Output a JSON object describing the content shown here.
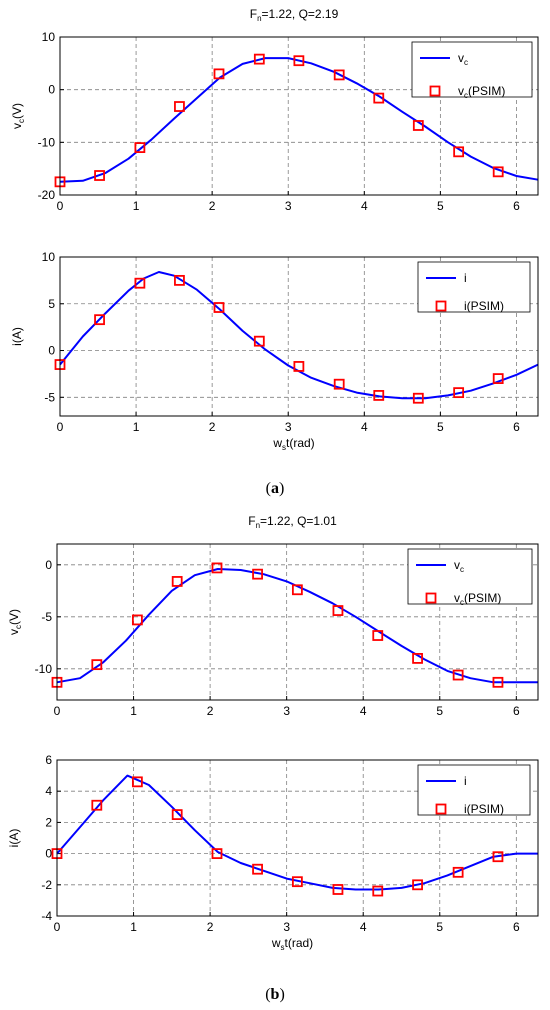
{
  "figure": {
    "caption_a": "a",
    "caption_b": "b"
  },
  "colors": {
    "line": "#0000ff",
    "marker": "#ff0000",
    "grid": "#808080"
  },
  "chart_data": [
    {
      "type": "line",
      "title": "F_n=1.22, Q=2.19",
      "title_main": "F",
      "title_sub": "n",
      "title_rest": "=1.22, Q=2.19",
      "xlabel": "",
      "ylabel": "v_c(V)",
      "ylabel_main": "v",
      "ylabel_sub": "c",
      "ylabel_rest": "(V)",
      "xlim": [
        0,
        6.2832
      ],
      "ylim": [
        -20,
        10
      ],
      "xticks": [
        0,
        1,
        2,
        3,
        4,
        5,
        6
      ],
      "yticks": [
        -20,
        -10,
        0,
        10
      ],
      "grid": true,
      "legend": "top-right",
      "series": [
        {
          "name": "v_c",
          "legend_main": "v",
          "legend_sub": "c",
          "legend_rest": "",
          "style": "line",
          "x": [
            0,
            0.3,
            0.6,
            0.9,
            1.2,
            1.5,
            1.8,
            2.1,
            2.4,
            2.7,
            3.0,
            3.3,
            3.6,
            3.9,
            4.2,
            4.5,
            4.8,
            5.1,
            5.4,
            5.7,
            6.0,
            6.2832
          ],
          "y": [
            -17.5,
            -17.3,
            -15.8,
            -13.1,
            -9.5,
            -5.5,
            -1.6,
            2.3,
            4.9,
            6.0,
            6.0,
            5.0,
            3.4,
            1.2,
            -1.3,
            -4.2,
            -7.0,
            -10.0,
            -12.7,
            -14.9,
            -16.4,
            -17.1
          ]
        },
        {
          "name": "v_c(PSIM)",
          "legend_main": "v",
          "legend_sub": "c",
          "legend_rest": "(PSIM)",
          "style": "marker",
          "x": [
            0,
            0.52,
            1.05,
            1.57,
            2.09,
            2.62,
            3.14,
            3.67,
            4.19,
            4.71,
            5.24,
            5.76
          ],
          "y": [
            -17.5,
            -16.3,
            -11.0,
            -3.2,
            3.0,
            5.8,
            5.5,
            2.8,
            -1.6,
            -6.8,
            -11.8,
            -15.6
          ]
        }
      ]
    },
    {
      "type": "line",
      "title": "",
      "xlabel": "w_st(rad)",
      "xlabel_main": "w",
      "xlabel_sub": "s",
      "xlabel_rest": "t(rad)",
      "ylabel": "i(A)",
      "ylabel_main": "i(A)",
      "ylabel_sub": "",
      "ylabel_rest": "",
      "xlim": [
        0,
        6.2832
      ],
      "ylim": [
        -7,
        10
      ],
      "xticks": [
        0,
        1,
        2,
        3,
        4,
        5,
        6
      ],
      "yticks": [
        -5,
        0,
        5,
        10
      ],
      "grid": true,
      "legend": "top-right",
      "series": [
        {
          "name": "i",
          "legend_main": "i",
          "legend_sub": "",
          "legend_rest": "",
          "style": "line",
          "x": [
            0,
            0.3,
            0.6,
            0.9,
            1.1,
            1.3,
            1.5,
            1.8,
            2.1,
            2.4,
            2.7,
            3.0,
            3.3,
            3.6,
            3.9,
            4.2,
            4.5,
            4.8,
            5.1,
            5.4,
            5.7,
            6.0,
            6.2832
          ],
          "y": [
            -1.5,
            1.5,
            4.0,
            6.4,
            7.7,
            8.4,
            8.0,
            6.5,
            4.4,
            2.1,
            0.1,
            -1.6,
            -2.9,
            -3.8,
            -4.5,
            -4.9,
            -5.1,
            -5.1,
            -4.8,
            -4.3,
            -3.5,
            -2.6,
            -1.5
          ]
        },
        {
          "name": "i(PSIM)",
          "legend_main": "i(PSIM)",
          "legend_sub": "",
          "legend_rest": "",
          "style": "marker",
          "x": [
            0,
            0.52,
            1.05,
            1.57,
            2.09,
            2.62,
            3.14,
            3.67,
            4.19,
            4.71,
            5.24,
            5.76
          ],
          "y": [
            -1.5,
            3.3,
            7.2,
            7.5,
            4.6,
            1.0,
            -1.7,
            -3.6,
            -4.8,
            -5.1,
            -4.5,
            -3.0
          ]
        }
      ]
    },
    {
      "type": "line",
      "title": "F_n=1.22, Q=1.01",
      "title_main": "F",
      "title_sub": "n",
      "title_rest": "=1.22, Q=1.01",
      "xlabel": "",
      "ylabel": "v_c(V)",
      "ylabel_main": "v",
      "ylabel_sub": "c",
      "ylabel_rest": "(V)",
      "xlim": [
        0,
        6.2832
      ],
      "ylim": [
        -13,
        2
      ],
      "xticks": [
        0,
        1,
        2,
        3,
        4,
        5,
        6
      ],
      "yticks": [
        -10,
        -5,
        0
      ],
      "grid": true,
      "legend": "top-right",
      "series": [
        {
          "name": "v_c",
          "legend_main": "v",
          "legend_sub": "c",
          "legend_rest": "",
          "style": "line",
          "x": [
            0,
            0.3,
            0.6,
            0.9,
            1.2,
            1.5,
            1.8,
            2.1,
            2.4,
            2.7,
            3.0,
            3.3,
            3.6,
            3.9,
            4.2,
            4.5,
            4.8,
            5.1,
            5.4,
            5.7,
            6.0,
            6.2832
          ],
          "y": [
            -11.3,
            -10.9,
            -9.4,
            -7.3,
            -4.8,
            -2.5,
            -1.0,
            -0.4,
            -0.5,
            -0.9,
            -1.6,
            -2.6,
            -3.7,
            -5.0,
            -6.4,
            -7.8,
            -9.1,
            -10.2,
            -10.9,
            -11.3,
            -11.3,
            -11.3
          ]
        },
        {
          "name": "v_c(PSIM)",
          "legend_main": "v",
          "legend_sub": "c",
          "legend_rest": "(PSIM)",
          "style": "marker",
          "x": [
            0,
            0.52,
            1.05,
            1.57,
            2.09,
            2.62,
            3.14,
            3.67,
            4.19,
            4.71,
            5.24,
            5.76
          ],
          "y": [
            -11.3,
            -9.6,
            -5.3,
            -1.6,
            -0.3,
            -0.9,
            -2.4,
            -4.4,
            -6.8,
            -9.0,
            -10.6,
            -11.3
          ]
        }
      ]
    },
    {
      "type": "line",
      "title": "",
      "xlabel": "w_st(rad)",
      "xlabel_main": "w",
      "xlabel_sub": "s",
      "xlabel_rest": "t(rad)",
      "ylabel": "i(A)",
      "ylabel_main": "i(A)",
      "ylabel_sub": "",
      "ylabel_rest": "",
      "xlim": [
        0,
        6.2832
      ],
      "ylim": [
        -4,
        6
      ],
      "xticks": [
        0,
        1,
        2,
        3,
        4,
        5,
        6
      ],
      "yticks": [
        -4,
        -2,
        0,
        2,
        4,
        6
      ],
      "grid": true,
      "legend": "top-right",
      "series": [
        {
          "name": "i",
          "legend_main": "i",
          "legend_sub": "",
          "legend_rest": "",
          "style": "line",
          "x": [
            0,
            0.3,
            0.6,
            0.92,
            1.2,
            1.5,
            1.8,
            2.1,
            2.4,
            2.7,
            3.0,
            3.3,
            3.6,
            3.9,
            4.2,
            4.5,
            4.8,
            5.1,
            5.4,
            5.7,
            6.0,
            6.2832
          ],
          "y": [
            0,
            1.7,
            3.4,
            5.0,
            4.4,
            3.0,
            1.5,
            0.1,
            -0.6,
            -1.1,
            -1.6,
            -1.9,
            -2.2,
            -2.3,
            -2.3,
            -2.2,
            -1.9,
            -1.4,
            -0.8,
            -0.2,
            0,
            0
          ]
        },
        {
          "name": "i(PSIM)",
          "legend_main": "i(PSIM)",
          "legend_sub": "",
          "legend_rest": "",
          "style": "marker",
          "x": [
            0,
            0.52,
            1.05,
            1.57,
            2.09,
            2.62,
            3.14,
            3.67,
            4.19,
            4.71,
            5.24,
            5.76
          ],
          "y": [
            0,
            3.1,
            4.6,
            2.5,
            0,
            -1.0,
            -1.8,
            -2.3,
            -2.4,
            -2.0,
            -1.2,
            -0.2
          ]
        }
      ]
    }
  ]
}
